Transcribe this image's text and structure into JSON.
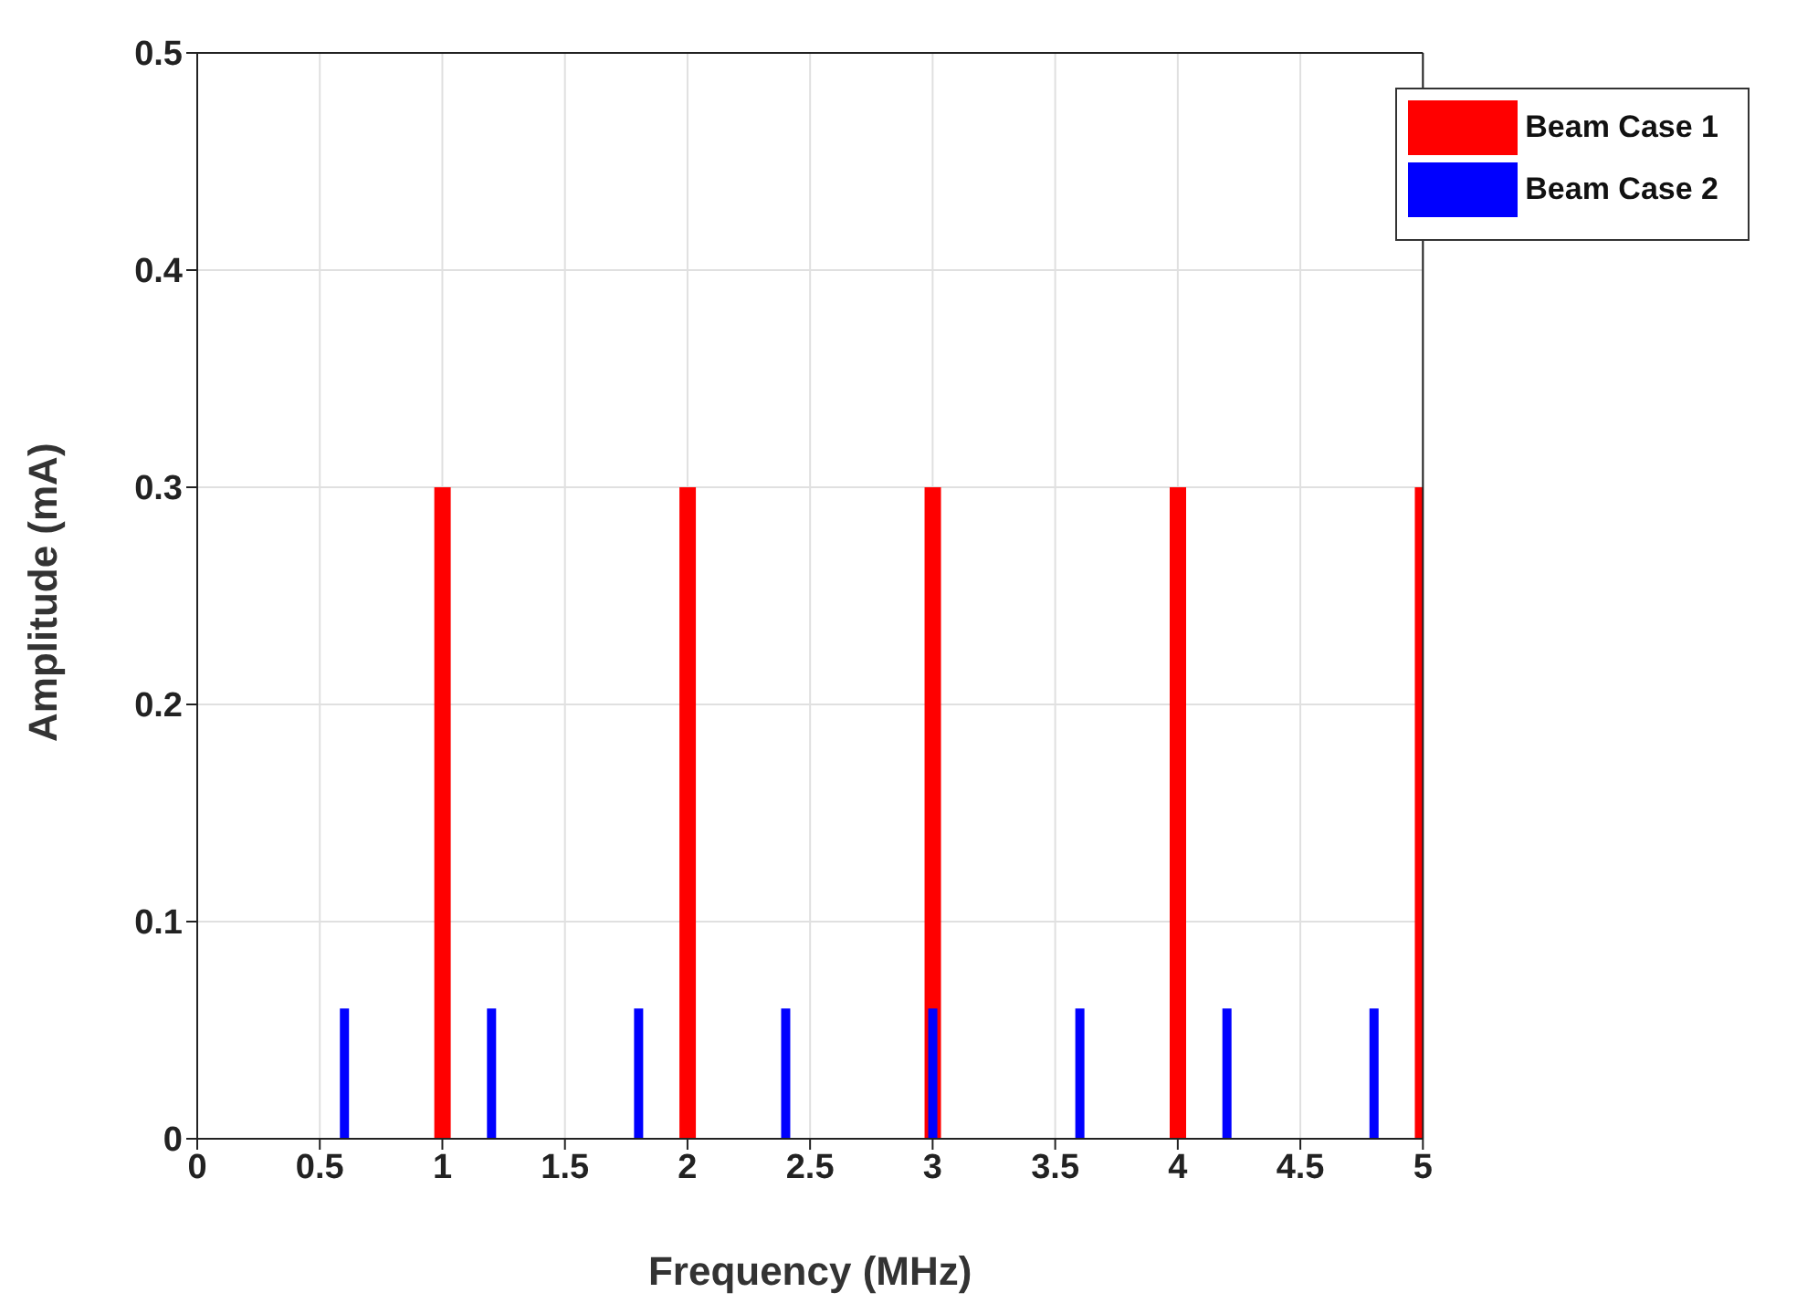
{
  "chart_data": {
    "type": "bar",
    "xlabel": "Frequency (MHz)",
    "ylabel": "Amplitude (mA)",
    "series": [
      {
        "name": "Beam Case 1",
        "color": "#ff0000",
        "x": [
          1,
          2,
          3,
          4,
          5
        ],
        "values": [
          0.3,
          0.3,
          0.3,
          0.3,
          0.3
        ]
      },
      {
        "name": "Beam Case 2",
        "color": "#0000ff",
        "x": [
          0.6,
          1.2,
          1.8,
          2.4,
          3.0,
          3.6,
          4.2,
          4.8
        ],
        "values": [
          0.06,
          0.06,
          0.06,
          0.06,
          0.06,
          0.06,
          0.06,
          0.06
        ]
      }
    ],
    "xlim": [
      0,
      5
    ],
    "xticks": [
      0,
      0.5,
      1,
      1.5,
      2,
      2.5,
      3,
      3.5,
      4,
      4.5,
      5
    ],
    "ylim": [
      0,
      0.5
    ],
    "yticks": [
      0,
      0.1,
      0.2,
      0.3,
      0.4,
      0.5
    ],
    "grid": true,
    "legend": "top right"
  }
}
